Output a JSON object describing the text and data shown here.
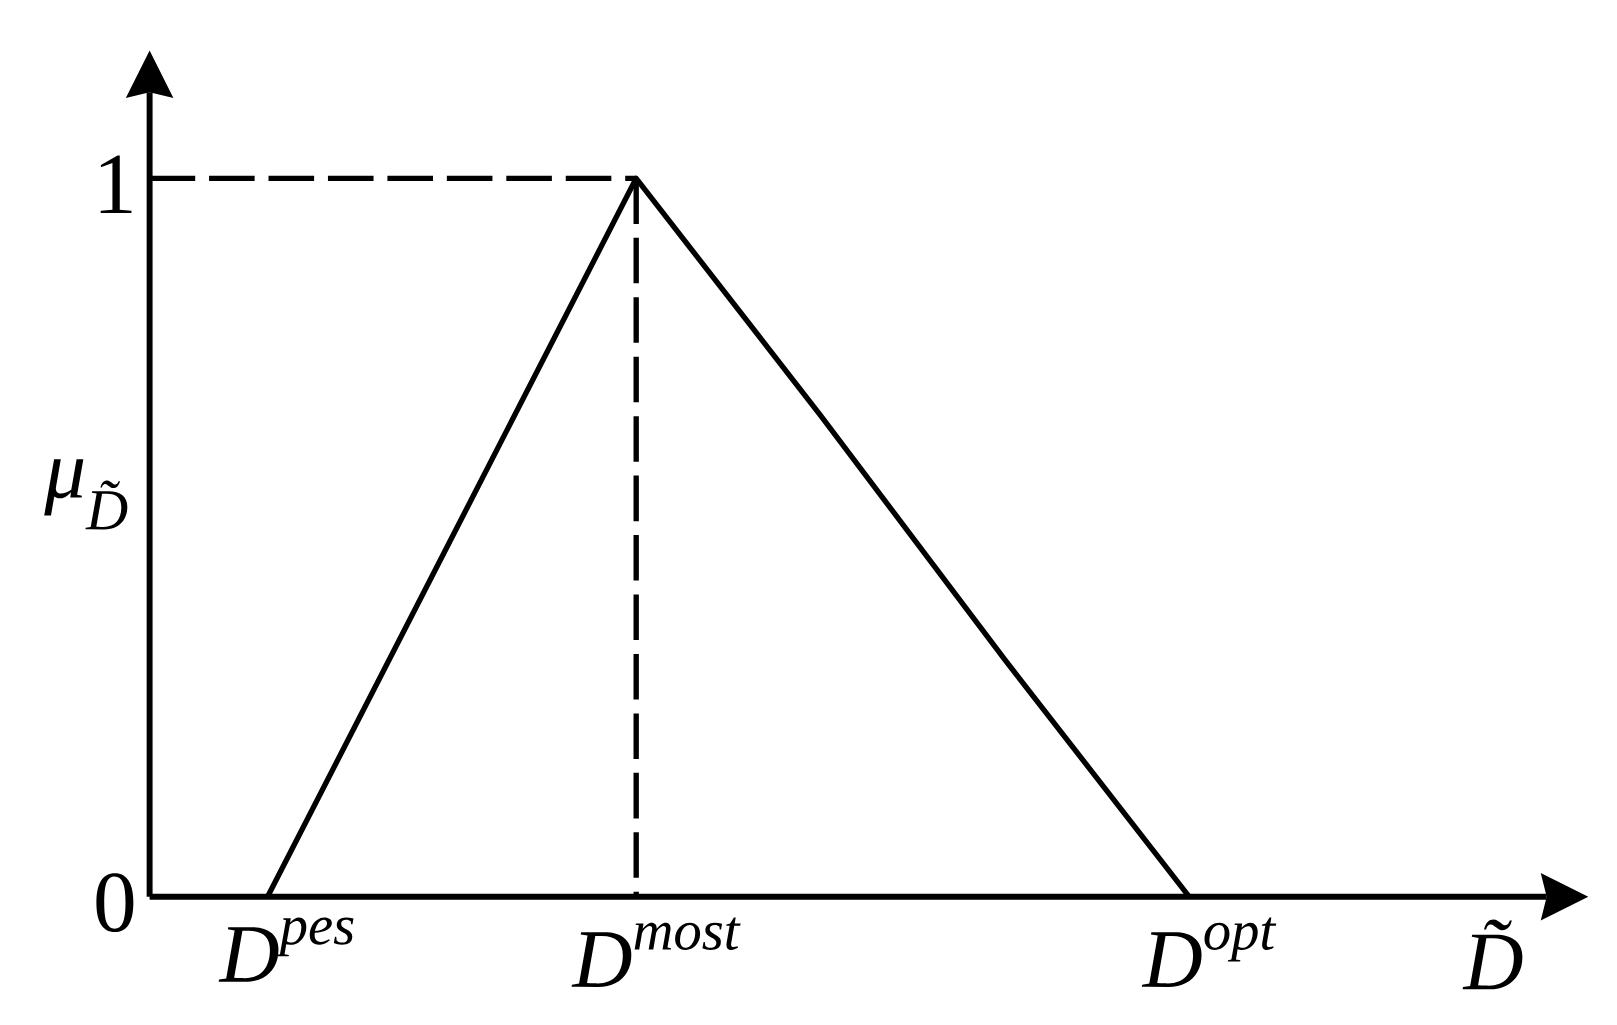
{
  "chart_data": {
    "type": "line",
    "xlabel": "D̃",
    "ylabel": "μ$_{D̃}$",
    "categories": [
      "D$^{pes}$",
      null,
      "D$^{most}$",
      null,
      null,
      "D$^{opt}$"
    ],
    "ylim": [
      0,
      1.12
    ],
    "yticks": [
      0,
      1
    ],
    "series": [
      {
        "color": "#000000",
        "values": [
          0,
          0.5,
          1,
          0.67,
          0.33,
          0
        ]
      }
    ],
    "ref_lines": [
      {
        "axis": "y",
        "value": 1,
        "color": "#000000",
        "line_style": "dashed"
      },
      {
        "axis": "x",
        "value": "D$^{most}$",
        "color": "#000000",
        "line_style": "dashed"
      }
    ],
    "grid": false,
    "marker": "none",
    "line_style": "solid"
  }
}
